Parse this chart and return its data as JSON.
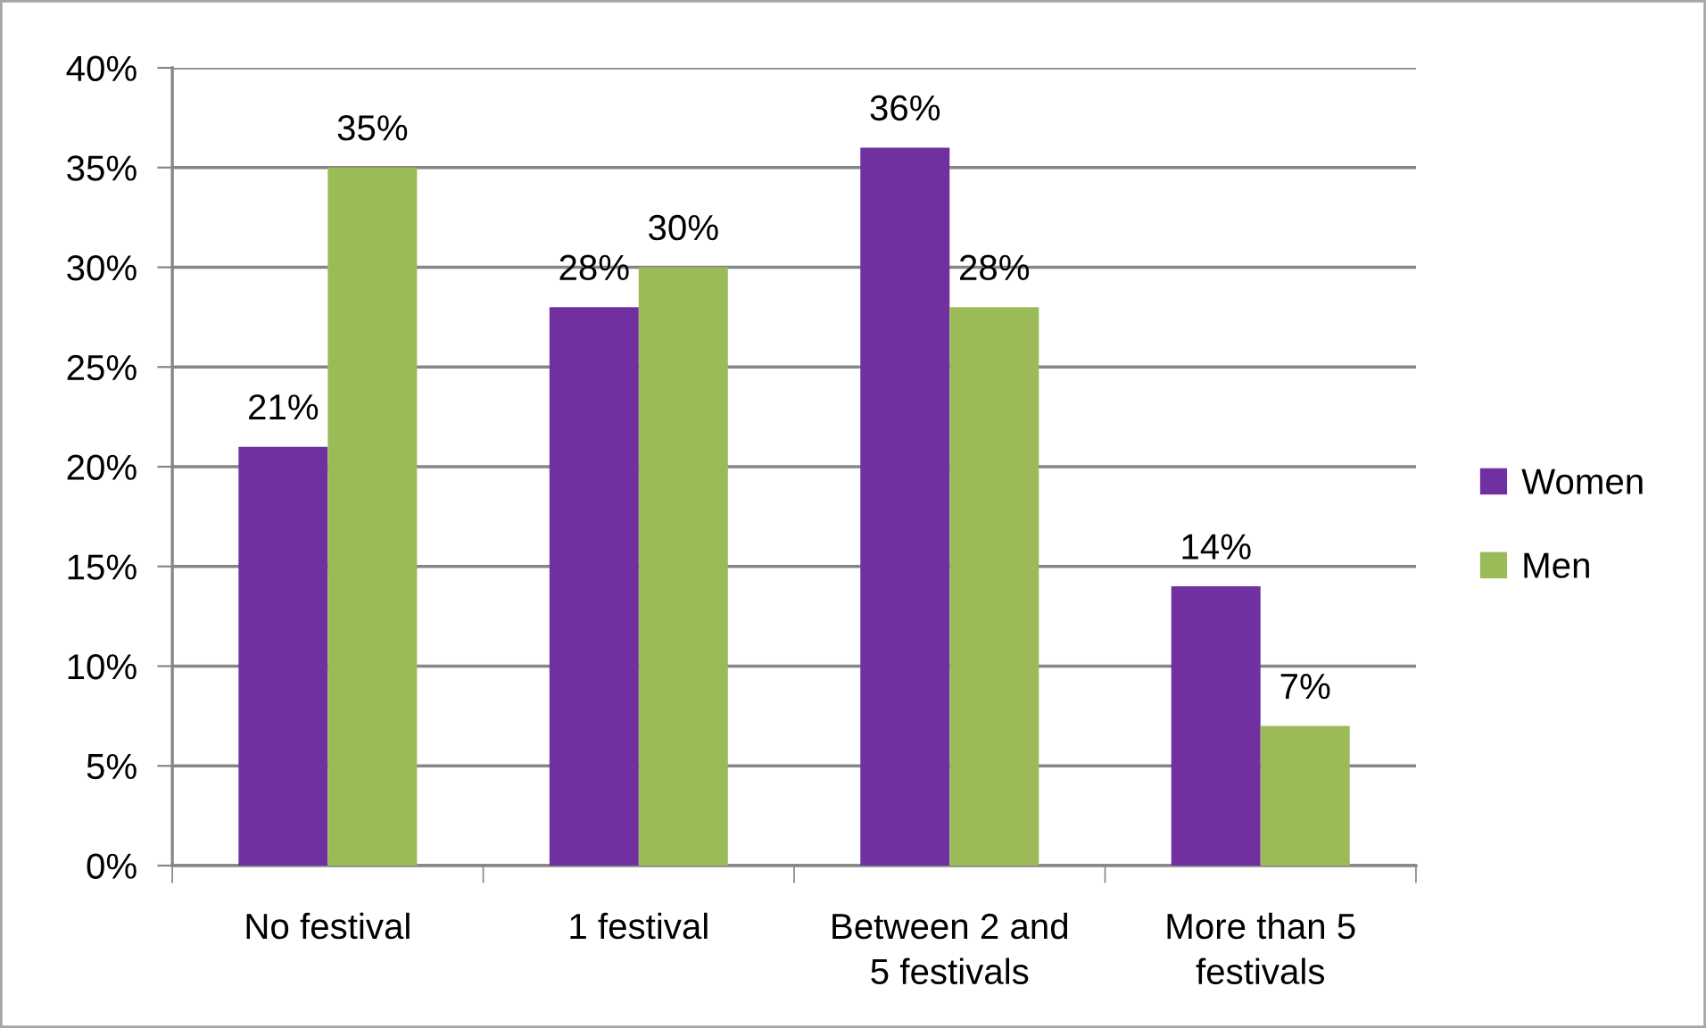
{
  "chart_data": {
    "type": "bar",
    "categories": [
      "No festival",
      "1 festival",
      "Between 2 and\n5 festivals",
      "More than 5\nfestivals"
    ],
    "series": [
      {
        "name": "Women",
        "color": "#7030a0",
        "values": [
          21,
          28,
          36,
          14
        ],
        "value_labels": [
          "21%",
          "28%",
          "36%",
          "14%"
        ]
      },
      {
        "name": "Men",
        "color": "#9bbb59",
        "values": [
          35,
          30,
          28,
          7
        ],
        "value_labels": [
          "35%",
          "30%",
          "28%",
          "7%"
        ]
      }
    ],
    "ylim": [
      0,
      40
    ],
    "yticks": [
      {
        "value": 0,
        "label": "0%"
      },
      {
        "value": 5,
        "label": "5%"
      },
      {
        "value": 10,
        "label": "10%"
      },
      {
        "value": 15,
        "label": "15%"
      },
      {
        "value": 20,
        "label": "20%"
      },
      {
        "value": 25,
        "label": "25%"
      },
      {
        "value": 30,
        "label": "30%"
      },
      {
        "value": 35,
        "label": "35%"
      },
      {
        "value": 40,
        "label": "40%"
      }
    ],
    "grid": "y",
    "legend": "right"
  }
}
